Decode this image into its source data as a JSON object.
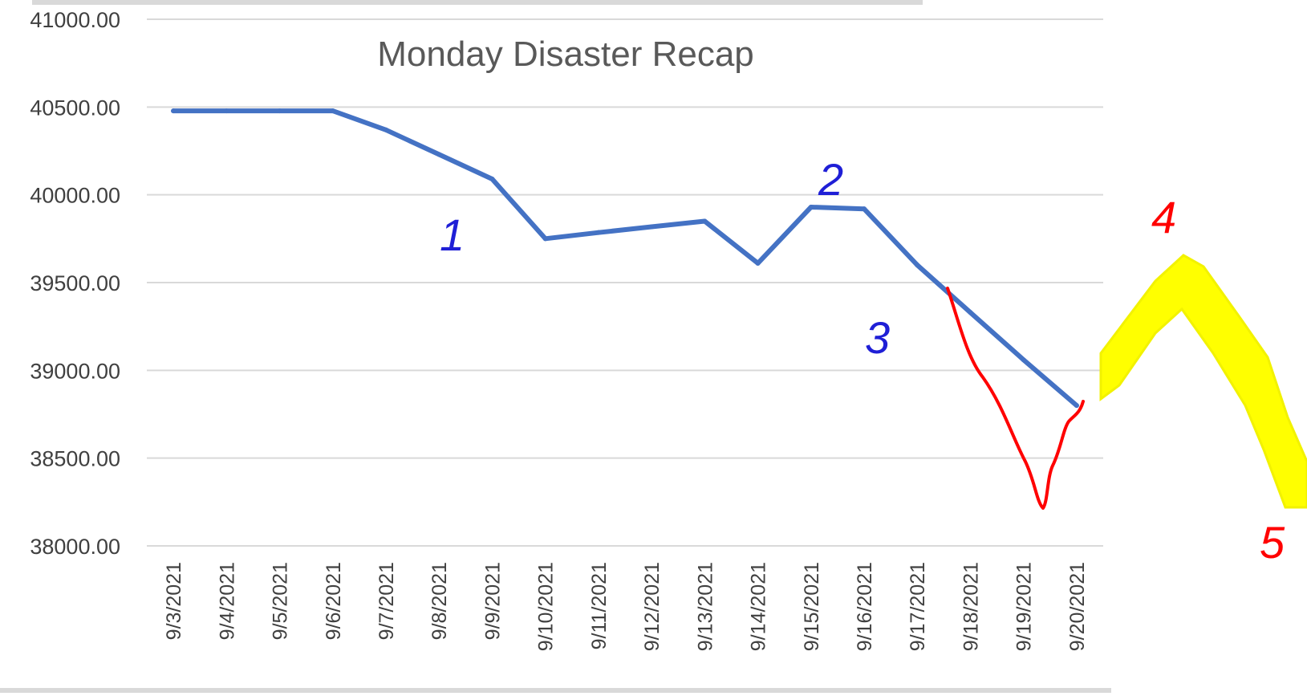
{
  "chart_data": {
    "type": "line",
    "title": "Monday Disaster Recap",
    "xlabel": "",
    "ylabel": "",
    "ylim": [
      38000,
      41000
    ],
    "yticks": [
      "41000.00",
      "40500.00",
      "40000.00",
      "39500.00",
      "39000.00",
      "38500.00",
      "38000.00"
    ],
    "categories": [
      "9/3/2021",
      "9/4/2021",
      "9/5/2021",
      "9/6/2021",
      "9/7/2021",
      "9/8/2021",
      "9/9/2021",
      "9/10/2021",
      "9/11/2021",
      "9/12/2021",
      "9/13/2021",
      "9/14/2021",
      "9/15/2021",
      "9/16/2021",
      "9/17/2021",
      "9/18/2021",
      "9/19/2021",
      "9/20/2021"
    ],
    "series": [
      {
        "values": [
          40478,
          40478,
          40478,
          40478,
          40370,
          40230,
          40090,
          39750,
          39785,
          39818,
          39850,
          39610,
          39930,
          39920,
          39600,
          39330,
          39060,
          38800
        ],
        "color": "#4472c4"
      }
    ],
    "grid": true,
    "legend": "none",
    "annotations": [
      {
        "text": "1",
        "color": "#1f1fd6"
      },
      {
        "text": "2",
        "color": "#1f1fd6"
      },
      {
        "text": "3",
        "color": "#1f1fd6"
      },
      {
        "text": "4",
        "color": "#ff0000"
      },
      {
        "text": "5",
        "color": "#ff0000"
      }
    ],
    "overlay_colors": {
      "red_path": "#ff0000",
      "yellow_band": "#ffff00"
    }
  }
}
